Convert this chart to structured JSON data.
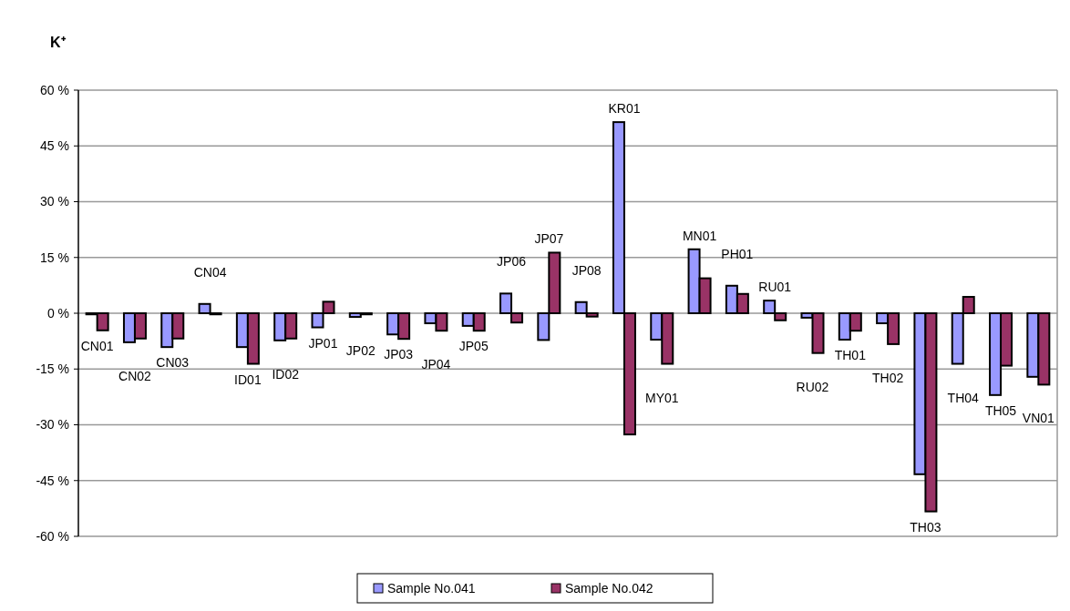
{
  "chart_data": {
    "type": "bar",
    "title": "K⁺",
    "categories": [
      "CN01",
      "CN02",
      "CN03",
      "CN04",
      "ID01",
      "ID02",
      "JP01",
      "JP02",
      "JP03",
      "JP04",
      "JP05",
      "JP06",
      "JP07",
      "JP08",
      "KR01",
      "MY01",
      "MN01",
      "PH01",
      "RU01",
      "RU02",
      "TH01",
      "TH02",
      "TH03",
      "TH04",
      "TH05",
      "VN01"
    ],
    "series": [
      {
        "name": "Sample No.041",
        "color": "#9999ff",
        "values": [
          -0.3,
          -7.8,
          -9.1,
          2.5,
          -9.1,
          -7.3,
          -3.8,
          -1.0,
          -5.7,
          -2.7,
          -3.4,
          5.3,
          -7.2,
          3.0,
          51.4,
          -7.1,
          17.2,
          7.4,
          3.4,
          -1.2,
          -7.1,
          -2.7,
          -43.3,
          -13.6,
          -22.0,
          -17.1
        ]
      },
      {
        "name": "Sample No.042",
        "color": "#993366",
        "values": [
          -4.6,
          -6.8,
          -6.8,
          -0.3,
          -13.6,
          -6.8,
          3.1,
          -0.3,
          -6.9,
          -4.7,
          -4.7,
          -2.5,
          16.3,
          -0.9,
          -32.6,
          -13.6,
          9.4,
          5.2,
          -1.9,
          -10.7,
          -4.7,
          -8.3,
          -53.3,
          4.4,
          -14.1,
          -19.2
        ]
      }
    ],
    "ylim": [
      -60,
      60
    ],
    "yticks": [
      {
        "value": -60,
        "label": "-60 %"
      },
      {
        "value": -45,
        "label": "-45 %"
      },
      {
        "value": -30,
        "label": "-30 %"
      },
      {
        "value": -15,
        "label": "-15 %"
      },
      {
        "value": 0,
        "label": "0 %"
      },
      {
        "value": 15,
        "label": "15 %"
      },
      {
        "value": 30,
        "label": "30 %"
      },
      {
        "value": 45,
        "label": "45 %"
      },
      {
        "value": 60,
        "label": "60 %"
      }
    ],
    "grid": "y",
    "legend": "bottom"
  }
}
